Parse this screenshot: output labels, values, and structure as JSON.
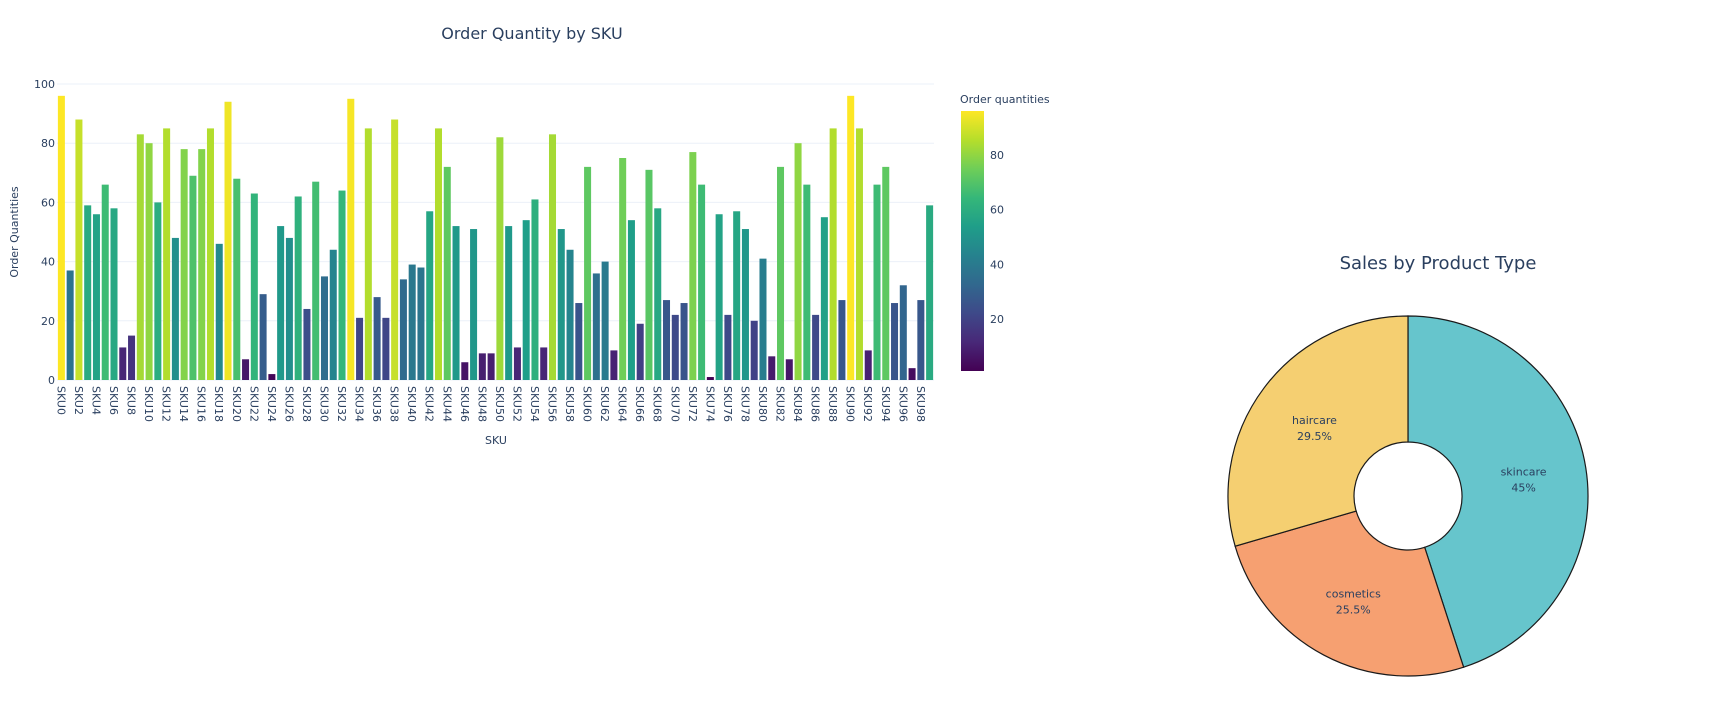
{
  "chart_data": [
    {
      "type": "bar",
      "title": "Order Quantity by SKU",
      "xlabel": "SKU",
      "ylabel": "Order Quantities",
      "ylim": [
        0,
        100
      ],
      "yticks": [
        0,
        20,
        40,
        60,
        80,
        100
      ],
      "grid": true,
      "colorbar": {
        "title": "Order quantities",
        "ticks": [
          20,
          40,
          60,
          80
        ],
        "range": [
          1,
          96
        ],
        "colorscale": "Viridis"
      },
      "categories": [
        "SKU0",
        "SKU1",
        "SKU2",
        "SKU3",
        "SKU4",
        "SKU5",
        "SKU6",
        "SKU7",
        "SKU8",
        "SKU9",
        "SKU10",
        "SKU11",
        "SKU12",
        "SKU13",
        "SKU14",
        "SKU15",
        "SKU16",
        "SKU17",
        "SKU18",
        "SKU19",
        "SKU20",
        "SKU21",
        "SKU22",
        "SKU23",
        "SKU24",
        "SKU25",
        "SKU26",
        "SKU27",
        "SKU28",
        "SKU29",
        "SKU30",
        "SKU31",
        "SKU32",
        "SKU33",
        "SKU34",
        "SKU35",
        "SKU36",
        "SKU37",
        "SKU38",
        "SKU39",
        "SKU40",
        "SKU41",
        "SKU42",
        "SKU43",
        "SKU44",
        "SKU45",
        "SKU46",
        "SKU47",
        "SKU48",
        "SKU49",
        "SKU50",
        "SKU51",
        "SKU52",
        "SKU53",
        "SKU54",
        "SKU55",
        "SKU56",
        "SKU57",
        "SKU58",
        "SKU59",
        "SKU60",
        "SKU61",
        "SKU62",
        "SKU63",
        "SKU64",
        "SKU65",
        "SKU66",
        "SKU67",
        "SKU68",
        "SKU69",
        "SKU70",
        "SKU71",
        "SKU72",
        "SKU73",
        "SKU74",
        "SKU75",
        "SKU76",
        "SKU77",
        "SKU78",
        "SKU79",
        "SKU80",
        "SKU81",
        "SKU82",
        "SKU83",
        "SKU84",
        "SKU85",
        "SKU86",
        "SKU87",
        "SKU88",
        "SKU89",
        "SKU90",
        "SKU91",
        "SKU92",
        "SKU93",
        "SKU94",
        "SKU95",
        "SKU96",
        "SKU97",
        "SKU98",
        "SKU99"
      ],
      "values": [
        96,
        37,
        88,
        59,
        56,
        66,
        58,
        11,
        15,
        83,
        80,
        60,
        85,
        48,
        78,
        69,
        78,
        85,
        46,
        94,
        68,
        7,
        63,
        29,
        2,
        52,
        48,
        62,
        24,
        67,
        35,
        44,
        64,
        95,
        21,
        85,
        28,
        21,
        88,
        34,
        39,
        38,
        57,
        85,
        72,
        52,
        6,
        51,
        9,
        9,
        82,
        52,
        11,
        54,
        61,
        11,
        83,
        51,
        44,
        26,
        72,
        36,
        40,
        10,
        75,
        54,
        19,
        71,
        58,
        27,
        22,
        26,
        77,
        66,
        1,
        56,
        22,
        57,
        51,
        20,
        41,
        8,
        72,
        7,
        80,
        66,
        22,
        55,
        85,
        27,
        96,
        85,
        10,
        66,
        72,
        26,
        32,
        4,
        27,
        59
      ]
    },
    {
      "type": "pie",
      "title": "Sales by Product Type",
      "hole": 0.3,
      "slices": [
        {
          "label": "skincare",
          "percent": "45%",
          "value": 45,
          "color": "#66c5cc"
        },
        {
          "label": "cosmetics",
          "percent": "25.5%",
          "value": 25.5,
          "color": "#f6a071"
        },
        {
          "label": "haircare",
          "percent": "29.5%",
          "value": 29.5,
          "color": "#f5cf71"
        }
      ]
    }
  ]
}
